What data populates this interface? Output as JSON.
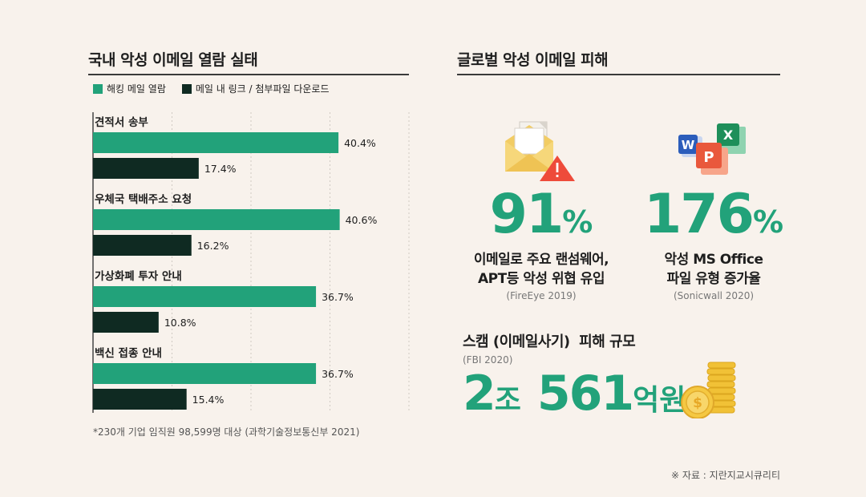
{
  "left": {
    "title": "국내 악성 이메일 열람 실태",
    "legend": [
      "해킹 메일 열람",
      "메일 내 링크 / 첨부파일 다운로드"
    ],
    "footnote": "*230개 기업 임직원 98,599명 대상 (과학기술정보통신부 2021)"
  },
  "right": {
    "title": "글로벌 악성 이메일 피해",
    "stat1": {
      "value": "91",
      "unit": "%",
      "line1": "이메일로 주요 랜섬웨어,",
      "line2": "APT등 악성 위협 유입",
      "source": "(FireEye 2019)"
    },
    "stat2": {
      "value": "176",
      "unit": "%",
      "line1": "악성 MS Office",
      "line2": "파일 유형 증가율",
      "source": "(Sonicwall 2020)"
    },
    "scam": {
      "title": "스캠 (이메일사기)  피해 규모",
      "source": "(FBI 2020)",
      "num1": "2",
      "unit1": "조",
      "num2": "561",
      "unit2": "억원"
    }
  },
  "credit": "※ 자료 : 지란지교시큐리티",
  "colors": {
    "series1": "#22a27a",
    "series2": "#0f2a22",
    "accent": "#22a27a"
  },
  "icons": [
    "mail-warning-icon",
    "ms-office-icon",
    "coin-stack-icon"
  ],
  "chart_data": {
    "type": "bar",
    "orientation": "horizontal",
    "categories": [
      "견적서 송부",
      "우체국 택배주소 요청",
      "가상화폐 투자 안내",
      "백신 접종 안내"
    ],
    "series": [
      {
        "name": "해킹 메일 열람",
        "values": [
          40.4,
          40.6,
          36.7,
          36.7
        ]
      },
      {
        "name": "메일 내 링크 / 첨부파일 다운로드",
        "values": [
          17.4,
          16.2,
          10.8,
          15.4
        ]
      }
    ],
    "value_suffix": "%",
    "xlim": [
      0,
      52
    ],
    "grid": true,
    "legend": "top-left"
  }
}
